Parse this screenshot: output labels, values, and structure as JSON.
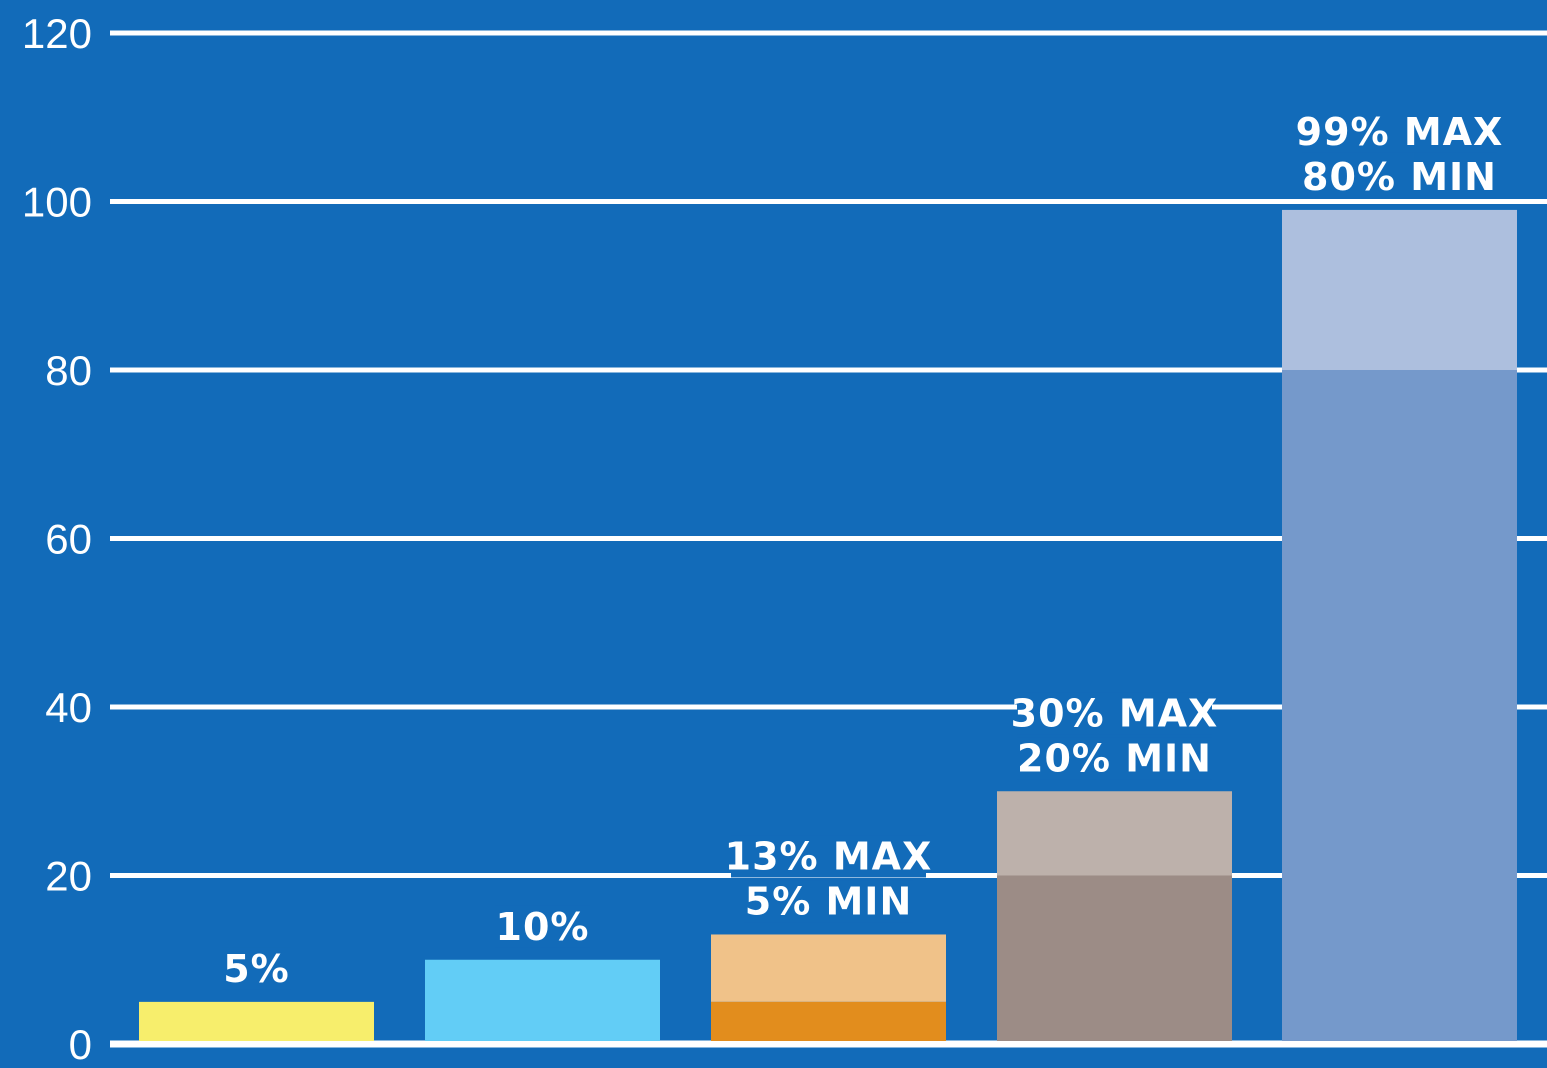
{
  "chart_data": {
    "type": "bar",
    "ylim": [
      0,
      120
    ],
    "y_ticks": [
      "0",
      "20",
      "40",
      "60",
      "80",
      "100",
      "120"
    ],
    "grid": true,
    "background_color": "#126bb9",
    "bars": [
      {
        "min": 5,
        "max": 5,
        "min_color": "#f7ee6c",
        "max_color": "#f7ee6c",
        "label_lines": [
          "5%"
        ]
      },
      {
        "min": 10,
        "max": 10,
        "min_color": "#62cdf6",
        "max_color": "#62cdf6",
        "label_lines": [
          "10%"
        ]
      },
      {
        "min": 5,
        "max": 13,
        "min_color": "#e28d1d",
        "max_color": "#f0c289",
        "label_lines": [
          "13% MAX",
          "5% MIN"
        ]
      },
      {
        "min": 20,
        "max": 30,
        "min_color": "#9c8c86",
        "max_color": "#bdb1ab",
        "label_lines": [
          "30% MAX",
          "20% MIN"
        ]
      },
      {
        "min": 80,
        "max": 99,
        "min_color": "#7599cb",
        "max_color": "#adbfde",
        "label_lines": [
          "99% MAX",
          "80% MIN"
        ]
      }
    ]
  }
}
